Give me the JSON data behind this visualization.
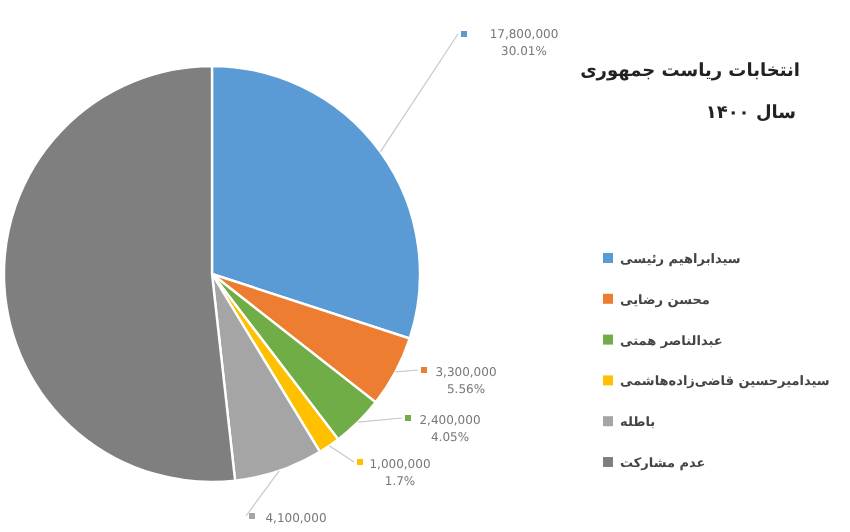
{
  "chart_data": {
    "type": "pie",
    "title": "انتخابات ریاست جمهوری",
    "subtitle": "سال ۱۴۰۰",
    "categories": [
      "سیدابراهیم رئیسی",
      "محسن رضایی",
      "عبدالناصر همتی",
      "سیدامیرحسین قاضی‌زاده‌هاشمی",
      "باطله",
      "عدم مشارکت"
    ],
    "values": [
      17800000,
      3300000,
      2400000,
      1000000,
      4100000,
      30700000
    ],
    "value_labels": [
      "17,800,000 30.01%",
      "3,300,000 5.56%",
      "2,400,000 4.05%",
      "1,000,000 1.7%",
      "4,100,000",
      null
    ],
    "colors": [
      "#5b9bd5",
      "#ed7d31",
      "#70ad47",
      "#ffc000",
      "#a5a5a5",
      "#7f7f7f"
    ],
    "legend": "right"
  }
}
